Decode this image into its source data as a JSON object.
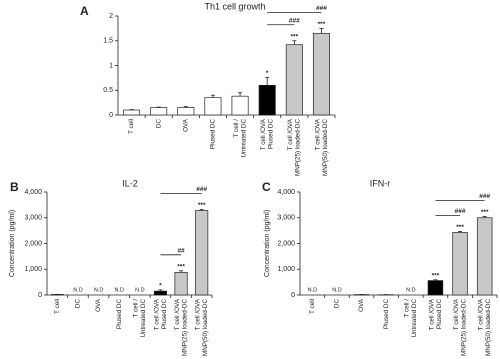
{
  "chart_data": [
    {
      "type": "bar",
      "panel_label": "A",
      "title": "Th1 cell growth",
      "categories": [
        [
          "T cell"
        ],
        [
          "DC"
        ],
        [
          "OVA"
        ],
        [
          "Plused DC"
        ],
        [
          "T cell /",
          "Untreated DC"
        ],
        [
          "T cell /OVA",
          "Plused DC"
        ],
        [
          "T cell /OVA",
          "MNP(25) loaded-DC"
        ],
        [
          "T cell /OVA",
          "MNP(50) loaded-DC"
        ]
      ],
      "values": [
        0.1,
        0.15,
        0.15,
        0.35,
        0.38,
        0.6,
        1.42,
        1.65
      ],
      "errors": [
        0.01,
        0.01,
        0.02,
        0.05,
        0.07,
        0.16,
        0.08,
        0.1
      ],
      "colors": [
        "#ffffff",
        "#ffffff",
        "#ffffff",
        "#ffffff",
        "#ffffff",
        "#000000",
        "#c8c8c8",
        "#c8c8c8"
      ],
      "annotations": [
        null,
        null,
        null,
        null,
        null,
        "*",
        "***",
        "***"
      ],
      "brackets": [
        {
          "from": 5,
          "to": 6,
          "label": "###"
        },
        {
          "from": 5,
          "to": 7,
          "label": "###"
        }
      ],
      "ylim": [
        0,
        2
      ],
      "yticks": [
        0,
        0.5,
        1,
        1.5,
        2
      ]
    },
    {
      "type": "bar",
      "panel_label": "B",
      "title": "IL-2",
      "ylabel": "Concentration (pg/ml)",
      "categories": [
        [
          "T cell"
        ],
        [
          "DC"
        ],
        [
          "OVA"
        ],
        [
          "Plused DC"
        ],
        [
          "T cell /",
          "Untreated DC"
        ],
        [
          "T cell /OVA",
          "Plused DC"
        ],
        [
          "T cell /OVA",
          "MNP(25) loaded-DC"
        ],
        [
          "T cell /OVA",
          "MNP(50) loaded-DC"
        ]
      ],
      "values": [
        20,
        null,
        null,
        null,
        null,
        150,
        880,
        3280
      ],
      "value_labels": [
        null,
        "N.D",
        "N.D",
        "N.D",
        "N.D",
        null,
        null,
        null
      ],
      "errors": [
        5,
        null,
        null,
        null,
        null,
        50,
        60,
        40
      ],
      "colors": [
        "#ffffff",
        "#ffffff",
        "#ffffff",
        "#ffffff",
        "#ffffff",
        "#000000",
        "#c8c8c8",
        "#c8c8c8"
      ],
      "annotations": [
        null,
        null,
        null,
        null,
        null,
        "*",
        "***",
        "***"
      ],
      "brackets": [
        {
          "from": 5,
          "to": 6,
          "label": "##"
        },
        {
          "from": 5,
          "to": 7,
          "label": "###"
        }
      ],
      "ylim": [
        0,
        4000
      ],
      "yticks": [
        0,
        {
          "value": 1000,
          "label": "1,000"
        },
        {
          "value": 2000,
          "label": "2,000"
        },
        {
          "value": 3000,
          "label": "3,000"
        },
        {
          "value": 4000,
          "label": "4,000"
        }
      ]
    },
    {
      "type": "bar",
      "panel_label": "C",
      "title": "IFN-r",
      "ylabel": "Concentration (pg/ml)",
      "categories": [
        [
          "T cell"
        ],
        [
          "DC"
        ],
        [
          "OVA"
        ],
        [
          "Plused DC"
        ],
        [
          "T cell /",
          "Untreated DC"
        ],
        [
          "T cell /OVA",
          "Plused DC"
        ],
        [
          "T cell /OVA",
          "MNP(25) loaded-DC"
        ],
        [
          "T cell /OVA",
          "MNP(50) loaded-DC"
        ]
      ],
      "values": [
        null,
        null,
        15,
        10,
        null,
        560,
        2430,
        3000
      ],
      "value_labels": [
        "N.D",
        "N.D",
        null,
        null,
        "N.D",
        null,
        null,
        null
      ],
      "errors": [
        null,
        null,
        5,
        5,
        null,
        30,
        40,
        50
      ],
      "colors": [
        "#ffffff",
        "#ffffff",
        "#ffffff",
        "#ffffff",
        "#ffffff",
        "#000000",
        "#c8c8c8",
        "#c8c8c8"
      ],
      "annotations": [
        null,
        null,
        null,
        null,
        null,
        "***",
        "***",
        "***"
      ],
      "brackets": [
        {
          "from": 5,
          "to": 6,
          "label": "###"
        },
        {
          "from": 5,
          "to": 7,
          "label": "###"
        }
      ],
      "ylim": [
        0,
        4000
      ],
      "yticks": [
        0,
        {
          "value": 1000,
          "label": "1,000"
        },
        {
          "value": 2000,
          "label": "2,000"
        },
        {
          "value": 3000,
          "label": "3,000"
        },
        {
          "value": 4000,
          "label": "4,000"
        }
      ]
    }
  ]
}
